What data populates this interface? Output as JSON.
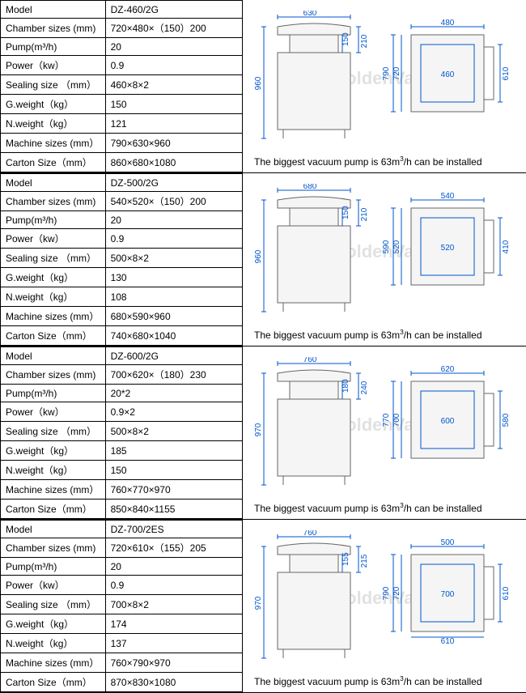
{
  "labels": {
    "model": "Model",
    "chamber": "Chamber sizes (mm)",
    "pump": "Pump(m³/h)",
    "power": "Power（kw）",
    "sealing": "Sealing size （mm）",
    "gweight": "G.weight（kg）",
    "nweight": "N.weight（kg）",
    "machine": "Machine sizes (mm）",
    "carton": "Carton Size（mm）"
  },
  "caption_template": "The biggest vacuum pump is 63m³/h can be installed",
  "watermark": "GoldenVac®",
  "products": [
    {
      "model": "DZ-460/2G",
      "chamber": "720×480×（150）200",
      "pump": "20",
      "power": "0.9",
      "sealing": "460×8×2",
      "gweight": "150",
      "nweight": "121",
      "machine": "790×630×960",
      "carton": "860×680×1080",
      "front": {
        "width": "630",
        "height": "960",
        "lid_h": "210",
        "inner_h": "150"
      },
      "top": {
        "width": "480",
        "outer_d": "790",
        "mid_d": "720",
        "inner_w": "460",
        "inner_d": "610"
      }
    },
    {
      "model": "DZ-500/2G",
      "chamber": "540×520×（150）200",
      "pump": "20",
      "power": "0.9",
      "sealing": "500×8×2",
      "gweight": "130",
      "nweight": "108",
      "machine": "680×590×960",
      "carton": "740×680×1040",
      "front": {
        "width": "680",
        "height": "960",
        "lid_h": "210",
        "inner_h": "150"
      },
      "top": {
        "width": "540",
        "outer_d": "590",
        "mid_d": "520",
        "inner_w": "520",
        "inner_d": "410"
      }
    },
    {
      "model": "DZ-600/2G",
      "chamber": "700×620×（180）230",
      "pump": "20*2",
      "power": "0.9×2",
      "sealing": "500×8×2",
      "gweight": "185",
      "nweight": "150",
      "machine": "760×770×970",
      "carton": "850×840×1155",
      "front": {
        "width": "760",
        "height": "970",
        "lid_h": "240",
        "inner_h": "180"
      },
      "top": {
        "width": "620",
        "outer_d": "770",
        "mid_d": "700",
        "inner_w": "600",
        "inner_d": "580"
      }
    },
    {
      "model": "DZ-700/2ES",
      "chamber": "720×610×（155）205",
      "pump": "20",
      "power": "0.9",
      "sealing": "700×8×2",
      "gweight": "174",
      "nweight": "137",
      "machine": "760×790×970",
      "carton": "870×830×1080",
      "front": {
        "width": "760",
        "height": "970",
        "lid_h": "215",
        "inner_h": "155"
      },
      "top": {
        "width": "500",
        "outer_d": "790",
        "mid_d": "720",
        "inner_w": "700",
        "inner_d": "610"
      }
    }
  ],
  "colors": {
    "diagram_stroke": "#0055cc",
    "body_fill": "#f5f5f5",
    "body_stroke": "#666666",
    "watermark_color": "rgba(180,180,180,0.4)"
  }
}
